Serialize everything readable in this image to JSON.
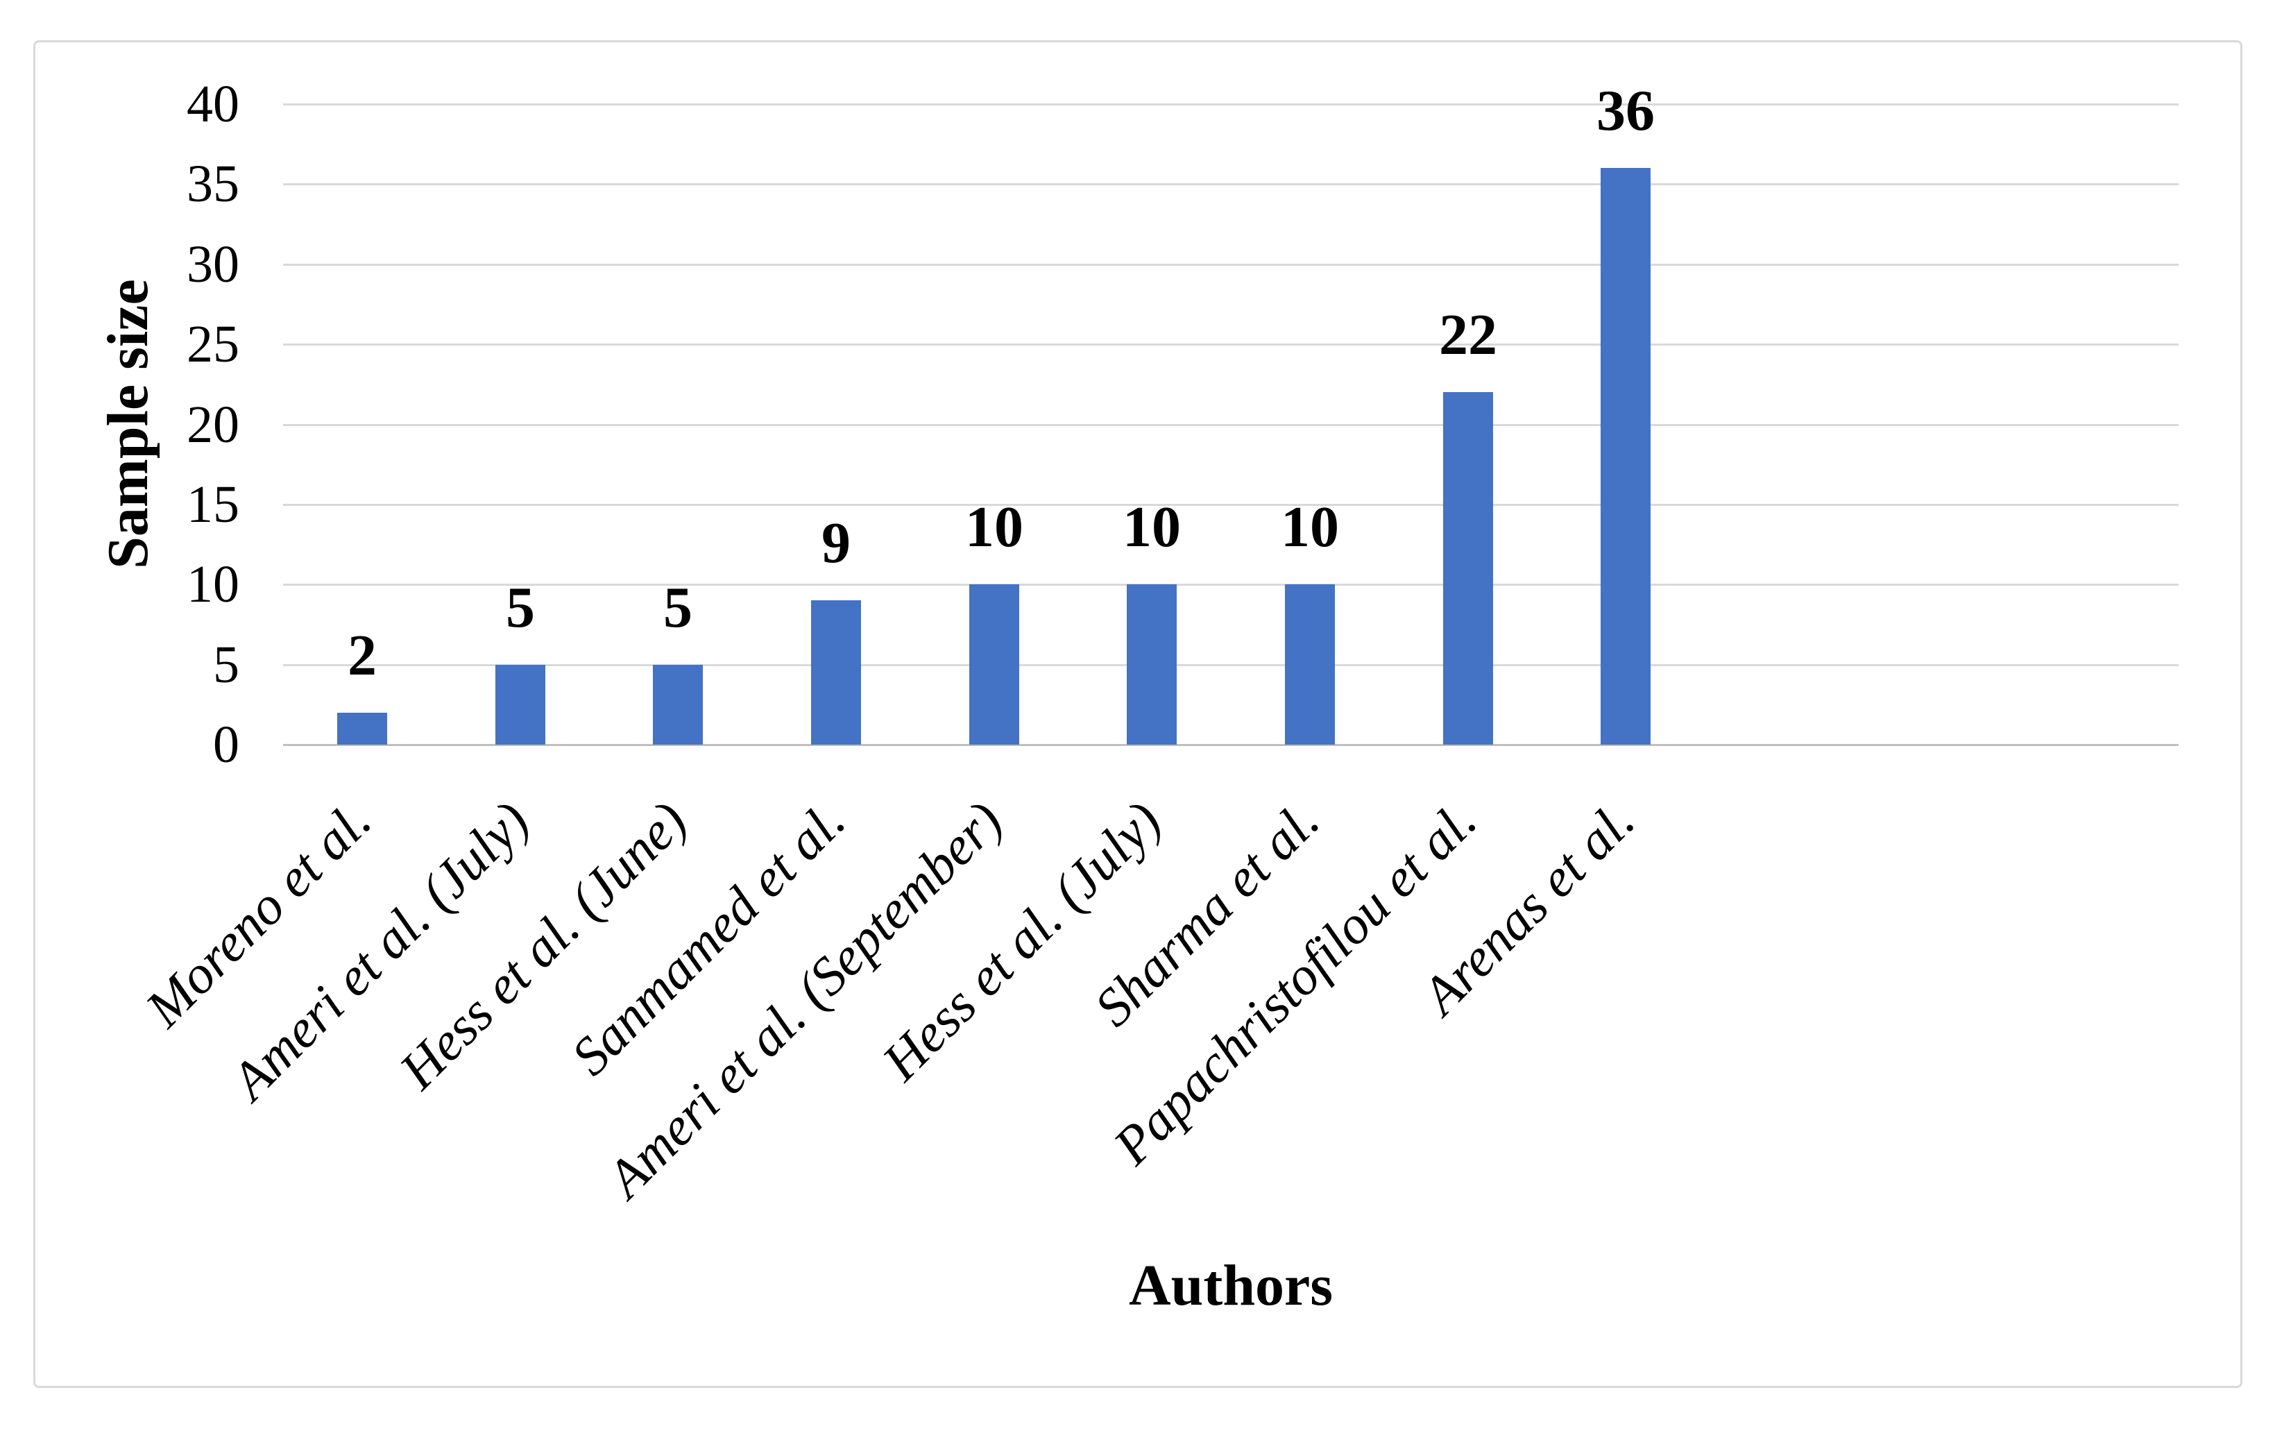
{
  "chart_data": {
    "type": "bar",
    "title": "",
    "categories": [
      "Moreno et al.",
      "Ameri et al. (July)",
      "Hess et al. (June)",
      "Sanmamed et al.",
      "Ameri et al. (September)",
      "Hess et al. (July)",
      "Sharma et al.",
      "Papachristofilou et al.",
      "Arenas et al."
    ],
    "values": [
      2,
      5,
      5,
      9,
      10,
      10,
      10,
      22,
      36
    ],
    "data_labels": [
      "2",
      "5",
      "5",
      "9",
      "10",
      "10",
      "10",
      "22",
      "36"
    ],
    "xlabel": "Authors",
    "ylabel": "Sample size",
    "ylim": [
      0,
      40
    ],
    "yticks": [
      0,
      5,
      10,
      15,
      20,
      25,
      30,
      35,
      40
    ],
    "grid": "horizontal",
    "legend": "none",
    "style": {
      "bar_color": "#4472C4",
      "gridline_color": "#D9D9D9",
      "axis_line_color": "#BFBFBF",
      "border_color": "#D9D9D9",
      "text_color": "#000000"
    }
  }
}
